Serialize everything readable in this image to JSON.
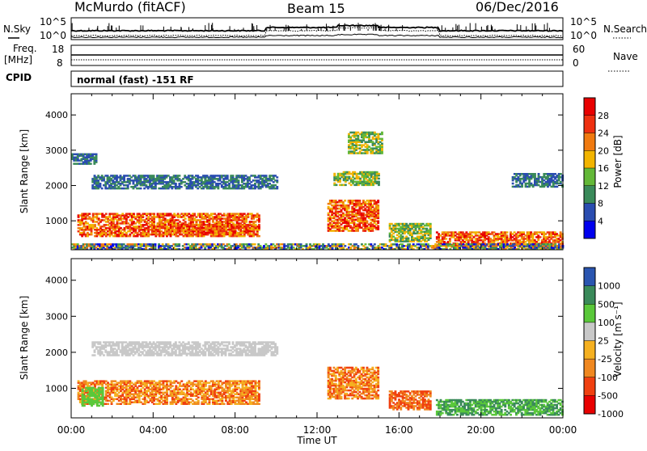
{
  "header": {
    "station": "McMurdo (fitACF)",
    "beam": "Beam 15",
    "date": "06/Dec/2016"
  },
  "summary": {
    "nsky_label": "N.Sky",
    "nsearch_label": "N.Search",
    "noise_top_tick": "10^5",
    "noise_bottom_tick": "10^0",
    "freq_label": "Freq.",
    "freq_unit": "[MHz]",
    "freq_ticks": [
      "18",
      "8"
    ],
    "nave_label": "Nave",
    "nave_ticks": [
      "60",
      "0"
    ],
    "cpid_label": "CPID",
    "cpid_text": "normal (fast) -151 RF"
  },
  "time_axis": {
    "label": "Time UT",
    "ticks": [
      "00:00",
      "04:00",
      "08:00",
      "12:00",
      "16:00",
      "20:00",
      "00:00"
    ]
  },
  "colors": {
    "power": [
      "#0000ee",
      "#2a4db0",
      "#3a8a5a",
      "#63b838",
      "#f2b400",
      "#f07a10",
      "#ee3010",
      "#e80000"
    ],
    "velocity": [
      "#e80000",
      "#f04010",
      "#f08820",
      "#f5b020",
      "#c8c8c8",
      "#5ac83a",
      "#3a8a5a",
      "#2a55b0"
    ]
  },
  "chart_data": [
    {
      "type": "heatmap",
      "name": "power",
      "xlabel": "Time UT",
      "ylabel": "Slant Range [km]",
      "x_ticks": [
        "00:00",
        "04:00",
        "08:00",
        "12:00",
        "16:00",
        "20:00",
        "00:00"
      ],
      "xlim_hours": [
        0,
        24
      ],
      "y_ticks": [
        1000,
        2000,
        3000,
        4000
      ],
      "ylim": [
        180,
        4600
      ],
      "colorbar": {
        "label": "Power [dB]",
        "ticks": [
          "4",
          "8",
          "12",
          "16",
          "20",
          "24",
          "28"
        ]
      },
      "features": [
        {
          "t": [
            0.0,
            1.2
          ],
          "r": [
            2600,
            2900
          ],
          "level": "low"
        },
        {
          "t": [
            0.3,
            9.2
          ],
          "r": [
            550,
            1200
          ],
          "level": "high"
        },
        {
          "t": [
            4.0,
            9.0
          ],
          "r": [
            600,
            900
          ],
          "level": "high"
        },
        {
          "t": [
            1.0,
            10.0
          ],
          "r": [
            1900,
            2300
          ],
          "level": "low"
        },
        {
          "t": [
            12.5,
            15.0
          ],
          "r": [
            700,
            1600
          ],
          "level": "high"
        },
        {
          "t": [
            12.8,
            15.0
          ],
          "r": [
            2000,
            2400
          ],
          "level": "mid"
        },
        {
          "t": [
            13.5,
            15.2
          ],
          "r": [
            2900,
            3500
          ],
          "level": "mid"
        },
        {
          "t": [
            15.5,
            17.5
          ],
          "r": [
            400,
            900
          ],
          "level": "mid"
        },
        {
          "t": [
            17.8,
            24.0
          ],
          "r": [
            250,
            700
          ],
          "level": "high"
        },
        {
          "t": [
            0.0,
            24.0
          ],
          "r": [
            180,
            350
          ],
          "level": "mixed"
        },
        {
          "t": [
            21.5,
            24.0
          ],
          "r": [
            1950,
            2350
          ],
          "level": "low"
        }
      ]
    },
    {
      "type": "heatmap",
      "name": "velocity",
      "xlabel": "Time UT",
      "ylabel": "Slant Range [km]",
      "x_ticks": [
        "00:00",
        "04:00",
        "08:00",
        "12:00",
        "16:00",
        "20:00",
        "00:00"
      ],
      "xlim_hours": [
        0,
        24
      ],
      "y_ticks": [
        1000,
        2000,
        3000,
        4000
      ],
      "ylim": [
        180,
        4600
      ],
      "colorbar": {
        "label": "Velocity [m s⁻¹]",
        "ticks": [
          "1000",
          "500",
          "100",
          "25",
          "-25",
          "-100",
          "-500",
          "-1000"
        ]
      },
      "features": [
        {
          "t": [
            0.3,
            9.2
          ],
          "r": [
            550,
            1200
          ],
          "value": "-100 to -500"
        },
        {
          "t": [
            1.0,
            10.0
          ],
          "r": [
            1900,
            2300
          ],
          "value": "-25 to 25"
        },
        {
          "t": [
            0.5,
            1.5
          ],
          "r": [
            500,
            1000
          ],
          "value": "100"
        },
        {
          "t": [
            12.5,
            15.0
          ],
          "r": [
            700,
            1600
          ],
          "value": "-100 to -500"
        },
        {
          "t": [
            17.8,
            24.0
          ],
          "r": [
            250,
            700
          ],
          "value": "100 to 500"
        },
        {
          "t": [
            15.5,
            17.5
          ],
          "r": [
            400,
            900
          ],
          "value": "-500"
        }
      ]
    }
  ]
}
